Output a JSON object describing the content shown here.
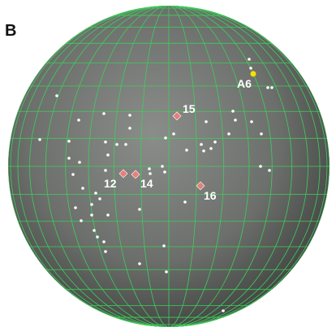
{
  "panel_label": "B",
  "sites": [
    {
      "label": "12"
    },
    {
      "label": "14"
    },
    {
      "label": "15"
    },
    {
      "label": "16"
    },
    {
      "label": "A6"
    }
  ]
}
